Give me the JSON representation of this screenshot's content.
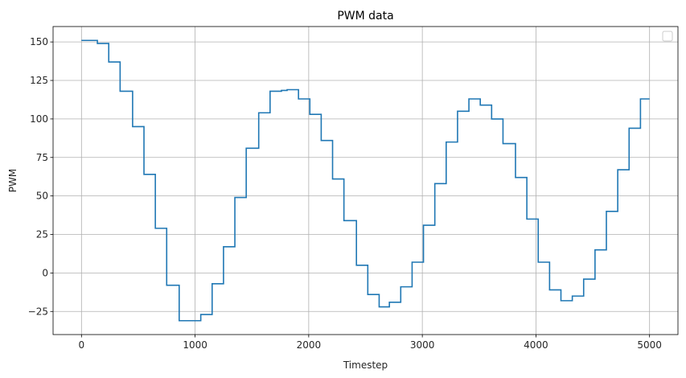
{
  "chart_data": {
    "type": "line",
    "title": "PWM data",
    "xlabel": "Timestep",
    "ylabel": "PWM",
    "xlim": [
      -250,
      5250
    ],
    "ylim": [
      -40,
      160
    ],
    "xticks": [
      0,
      1000,
      2000,
      3000,
      4000,
      5000
    ],
    "yticks": [
      -25,
      0,
      25,
      50,
      75,
      100,
      125,
      150
    ],
    "grid": true,
    "legend": "top-right",
    "series": [
      {
        "color": "#1f77b4",
        "style": "step-post",
        "x": [
          0,
          140,
          240,
          340,
          450,
          550,
          650,
          750,
          860,
          1050,
          1150,
          1250,
          1350,
          1450,
          1560,
          1660,
          1760,
          1810,
          1910,
          2010,
          2110,
          2210,
          2310,
          2420,
          2520,
          2620,
          2710,
          2810,
          2910,
          3010,
          3110,
          3210,
          3310,
          3410,
          3510,
          3610,
          3710,
          3820,
          3920,
          4020,
          4120,
          4220,
          4320,
          4420,
          4520,
          4620,
          4720,
          4820,
          4920,
          5000
        ],
        "y": [
          151,
          149,
          137,
          118,
          95,
          64,
          29,
          -8,
          -31,
          -27,
          -7,
          17,
          49,
          81,
          104,
          118,
          118.5,
          119,
          113,
          103,
          86,
          61,
          34,
          5,
          -14,
          -22,
          -19,
          -9,
          7,
          31,
          58,
          85,
          105,
          113,
          109,
          100,
          84,
          62,
          35,
          7,
          -11,
          -18,
          -15,
          -4,
          15,
          40,
          67,
          94,
          113,
          113
        ]
      }
    ]
  }
}
